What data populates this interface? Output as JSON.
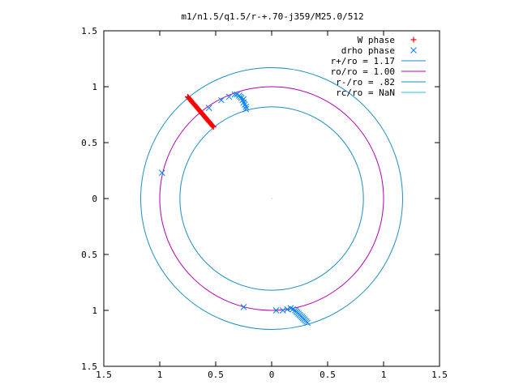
{
  "chart_data": {
    "type": "scatter",
    "title": "m1/n1.5/q1.5/r-+.70-j359/M25.0/512",
    "xlabel": "",
    "ylabel": "",
    "xlim": [
      -1.5,
      1.5
    ],
    "ylim": [
      -1.5,
      1.5
    ],
    "grid": false,
    "legend_position": "top-right",
    "x_ticks": [
      -1.5,
      -1.0,
      -0.5,
      0,
      0.5,
      1.0,
      1.5
    ],
    "y_ticks": [
      -1.5,
      -1.0,
      -0.5,
      0,
      0.5,
      1.0,
      1.5
    ],
    "x_tick_labels": [
      "1.5",
      "1",
      "0.5",
      "0",
      "0.5",
      "1",
      "1.5"
    ],
    "y_tick_labels": [
      "1.5",
      "1",
      "0.5",
      "0",
      "0.5",
      "1",
      "1.5"
    ],
    "legend": [
      {
        "label": "W phase",
        "marker": "plus",
        "color": "#ff0000"
      },
      {
        "label": "drho phase",
        "marker": "cross",
        "color": "#0080ff"
      },
      {
        "label": "r+/ro = 1.17",
        "marker": "line",
        "color": "#1a8fc4"
      },
      {
        "label": "ro/ro = 1.00",
        "marker": "line",
        "color": "#b400b4"
      },
      {
        "label": "r-/ro = .82",
        "marker": "line",
        "color": "#1a8fc4"
      },
      {
        "label": "rc/ro = NaN",
        "marker": "line",
        "color": "#22c8d8"
      }
    ],
    "circles": [
      {
        "name": "r+/ro",
        "radius": 1.17,
        "color": "#1a8fc4"
      },
      {
        "name": "ro/ro",
        "radius": 1.0,
        "color": "#b400b4"
      },
      {
        "name": "r-/ro",
        "radius": 0.82,
        "color": "#1a8fc4"
      }
    ],
    "series": [
      {
        "name": "W phase",
        "color": "#ff0000",
        "marker": "plus",
        "line": {
          "x1": -0.75,
          "y1": 0.91,
          "x2": -0.52,
          "y2": 0.64,
          "count": 40
        }
      },
      {
        "name": "drho phase",
        "color": "#0080ff",
        "marker": "cross",
        "x": [
          -0.98,
          -0.56,
          -0.45,
          -0.38,
          -0.33,
          -0.31,
          -0.29,
          -0.28,
          -0.27,
          -0.26,
          -0.25,
          -0.24,
          -0.23,
          -0.23,
          -0.25,
          0.04,
          0.1,
          0.14,
          0.17,
          0.19,
          0.21,
          0.22,
          0.23,
          0.24,
          0.25,
          0.26,
          0.27,
          0.28,
          0.29,
          0.3,
          0.31,
          0.32,
          -0.25
        ],
        "y": [
          0.23,
          0.81,
          0.88,
          0.91,
          0.93,
          0.93,
          0.92,
          0.91,
          0.9,
          0.88,
          0.86,
          0.84,
          0.82,
          0.8,
          -0.97,
          -1.0,
          -1.0,
          -0.99,
          -0.98,
          -0.99,
          -1.0,
          -1.01,
          -1.02,
          -1.03,
          -1.04,
          -1.05,
          -1.06,
          -1.07,
          -1.08,
          -1.09,
          -1.1,
          -1.11,
          0.89
        ]
      }
    ]
  }
}
